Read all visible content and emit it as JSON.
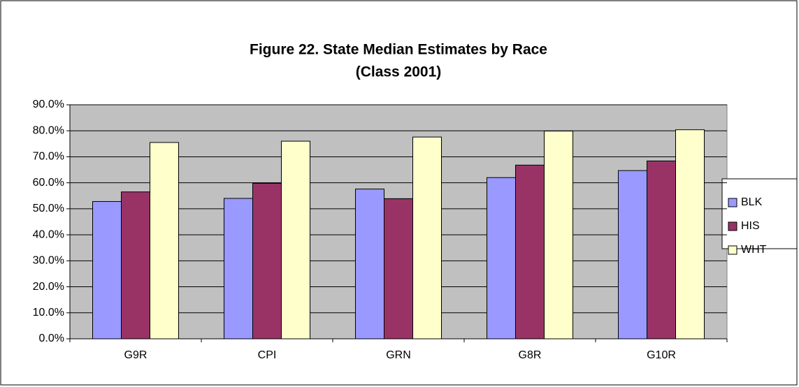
{
  "chart_data": {
    "type": "bar",
    "title": "Figure 22. State Median Estimates by Race",
    "subtitle": "(Class 2001)",
    "categories": [
      "G9R",
      "CPI",
      "GRN",
      "G8R",
      "G10R"
    ],
    "series": [
      {
        "name": "BLK",
        "color": "#9999ff",
        "values": [
          52.8,
          54,
          57.6,
          62,
          64.7
        ]
      },
      {
        "name": "HIS",
        "color": "#993366",
        "values": [
          56.5,
          59.8,
          53.9,
          66.8,
          68.4
        ]
      },
      {
        "name": "WHT",
        "color": "#ffffcc",
        "values": [
          75.5,
          76,
          77.6,
          79.9,
          80.4
        ]
      }
    ],
    "ylim": [
      0,
      90
    ],
    "yticks": [
      {
        "value": 0,
        "label": "0.0%"
      },
      {
        "value": 10,
        "label": "10.0%"
      },
      {
        "value": 20,
        "label": "20.0%"
      },
      {
        "value": 30,
        "label": "30.0%"
      },
      {
        "value": 40,
        "label": "40.0%"
      },
      {
        "value": 50,
        "label": "50.0%"
      },
      {
        "value": 60,
        "label": "60.0%"
      },
      {
        "value": 70,
        "label": "70.0%"
      },
      {
        "value": 80,
        "label": "80.0%"
      },
      {
        "value": 90,
        "label": "90.0%"
      }
    ],
    "grid": true,
    "legend": "right"
  }
}
